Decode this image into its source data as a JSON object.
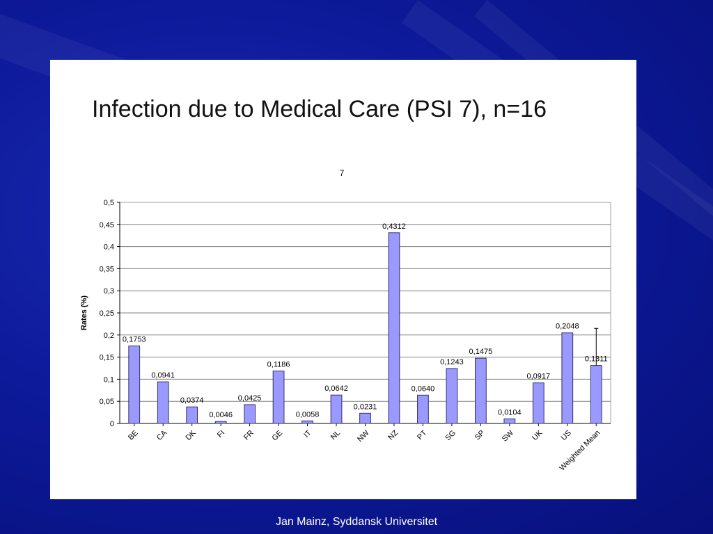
{
  "slide": {
    "title": "Infection due to Medical Care (PSI 7), n=16",
    "footer": "Jan Mainz, Syddansk Universitet"
  },
  "colors": {
    "background": "#0d1a9a",
    "bar_fill": "#9999ff",
    "bar_stroke": "#333366",
    "gridline": "#808080"
  },
  "chart_data": {
    "type": "bar",
    "title": "7",
    "xlabel": "",
    "ylabel": "Rates (%)",
    "ylim": [
      0,
      0.5
    ],
    "yticks": [
      0,
      0.05,
      0.1,
      0.15,
      0.2,
      0.25,
      0.3,
      0.35,
      0.4,
      0.45,
      0.5
    ],
    "ytick_labels": [
      "0",
      "0,05",
      "0,1",
      "0,15",
      "0,2",
      "0,25",
      "0,3",
      "0,35",
      "0,4",
      "0,45",
      "0,5"
    ],
    "categories": [
      "BE",
      "CA",
      "DK",
      "FI",
      "FR",
      "GE",
      "IT",
      "NL",
      "NW",
      "NZ",
      "PT",
      "SG",
      "SP",
      "SW",
      "UK",
      "US",
      "Weighted Mean"
    ],
    "values": [
      0.1753,
      0.0941,
      0.0374,
      0.0046,
      0.0425,
      0.1186,
      0.0058,
      0.0642,
      0.0231,
      0.4312,
      0.064,
      0.1243,
      0.1475,
      0.0104,
      0.0917,
      0.2048,
      0.1311
    ],
    "value_labels": [
      "0,1753",
      "0,0941",
      "0,0374",
      "0,0046",
      "0,0425",
      "0,1186",
      "0,0058",
      "0,0642",
      "0,0231",
      "0,4312",
      "0,0640",
      "0,1243",
      "0,1475",
      "0,0104",
      "0,0917",
      "0,2048",
      "0,1311"
    ],
    "error_bar": {
      "category": "Weighted Mean",
      "upper": 0.215
    },
    "grid": true,
    "legend": "none"
  }
}
